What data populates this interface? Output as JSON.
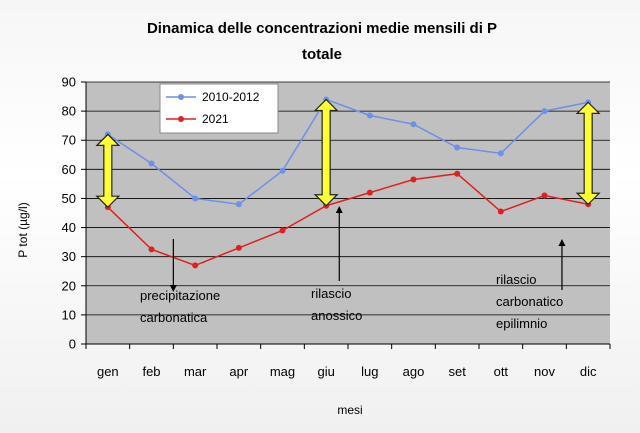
{
  "chart_data": {
    "type": "line",
    "title": "Dinamica delle concentrazioni medie mensili di P",
    "title_line2": "totale",
    "xlabel": "mesi",
    "ylabel": "P tot (µg/l)",
    "ylim": [
      0,
      90
    ],
    "yticks": [
      0,
      10,
      20,
      30,
      40,
      50,
      60,
      70,
      80,
      90
    ],
    "grid": true,
    "legend_position": "top-left",
    "plot_background": "#c0c0c0",
    "categories": [
      "gen",
      "feb",
      "mar",
      "apr",
      "mag",
      "giu",
      "lug",
      "ago",
      "set",
      "ott",
      "nov",
      "dic"
    ],
    "series": [
      {
        "name": "2010-2012",
        "color": "#6f8fe8",
        "values": [
          72,
          62,
          50,
          48,
          59.5,
          84,
          78.5,
          75.5,
          67.5,
          65.5,
          80,
          83
        ]
      },
      {
        "name": "2021",
        "color": "#e02020",
        "values": [
          47,
          32.5,
          27,
          33,
          39,
          47.5,
          52,
          56.5,
          58.5,
          45.5,
          51,
          48
        ]
      }
    ],
    "annotations": [
      {
        "lines": [
          "precipitazione",
          "carbonatica"
        ],
        "category_index": 1.5
      },
      {
        "lines": [
          "rilascio",
          "anossico"
        ],
        "category_index": 5.3
      },
      {
        "lines": [
          "rilascio",
          "carbonatico",
          "epilimnio"
        ],
        "category_index": 10.4
      }
    ],
    "double_arrows": [
      {
        "category_index": 0,
        "from": 47,
        "to": 72
      },
      {
        "category_index": 5,
        "from": 47.5,
        "to": 84
      },
      {
        "category_index": 11,
        "from": 48,
        "to": 83
      }
    ],
    "arrow_color": "#ffff33"
  }
}
